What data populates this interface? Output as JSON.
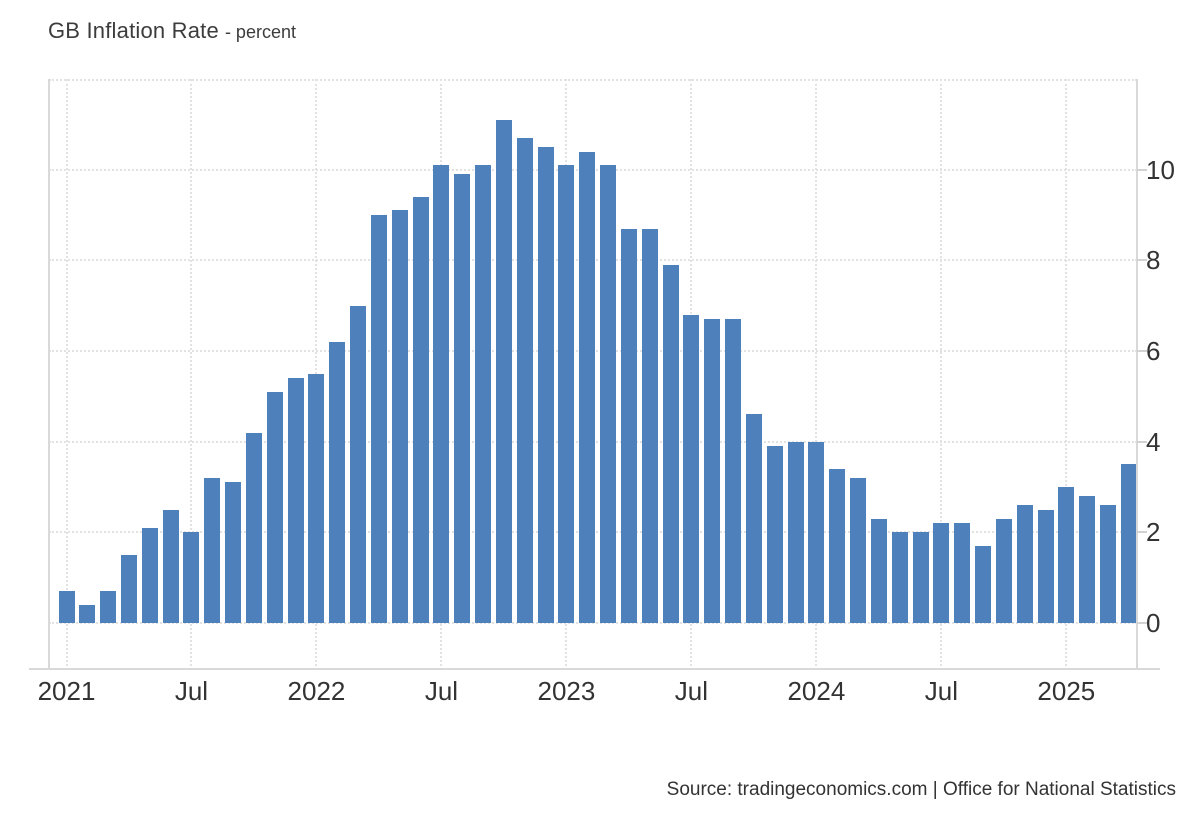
{
  "header": {
    "title": "GB Inflation Rate",
    "subtitle": "- percent"
  },
  "footer": {
    "source": "Source: tradingeconomics.com | Office for National Statistics"
  },
  "colors": {
    "bar": "#4e80bc",
    "grid": "#e2e2e2",
    "axis": "#d9d9d9",
    "text": "#333333"
  },
  "chart_data": {
    "type": "bar",
    "title": "GB Inflation Rate",
    "subtitle": "percent",
    "ylabel": "percent",
    "x": [
      "2021-01",
      "2021-02",
      "2021-03",
      "2021-04",
      "2021-05",
      "2021-06",
      "2021-07",
      "2021-08",
      "2021-09",
      "2021-10",
      "2021-11",
      "2021-12",
      "2022-01",
      "2022-02",
      "2022-03",
      "2022-04",
      "2022-05",
      "2022-06",
      "2022-07",
      "2022-08",
      "2022-09",
      "2022-10",
      "2022-11",
      "2022-12",
      "2023-01",
      "2023-02",
      "2023-03",
      "2023-04",
      "2023-05",
      "2023-06",
      "2023-07",
      "2023-08",
      "2023-09",
      "2023-10",
      "2023-11",
      "2023-12",
      "2024-01",
      "2024-02",
      "2024-03",
      "2024-04",
      "2024-05",
      "2024-06",
      "2024-07",
      "2024-08",
      "2024-09",
      "2024-10",
      "2024-11",
      "2024-12",
      "2025-01",
      "2025-02",
      "2025-03",
      "2025-04"
    ],
    "values": [
      0.7,
      0.4,
      0.7,
      1.5,
      2.1,
      2.5,
      2.0,
      3.2,
      3.1,
      4.2,
      5.1,
      5.4,
      5.5,
      6.2,
      7.0,
      9.0,
      9.1,
      9.4,
      10.1,
      9.9,
      10.1,
      11.1,
      10.7,
      10.5,
      10.1,
      10.4,
      10.1,
      8.7,
      8.7,
      7.9,
      6.8,
      6.7,
      6.7,
      4.6,
      3.9,
      4.0,
      4.0,
      3.4,
      3.2,
      2.3,
      2.0,
      2.0,
      2.2,
      2.2,
      1.7,
      2.3,
      2.6,
      2.5,
      3.0,
      2.8,
      2.6,
      3.5
    ],
    "x_tick_labels": [
      "2021",
      "Jul",
      "2022",
      "Jul",
      "2023",
      "Jul",
      "2024",
      "Jul",
      "2025"
    ],
    "x_tick_month_index": [
      0,
      6,
      12,
      18,
      24,
      30,
      36,
      42,
      48
    ],
    "y_ticks": [
      0,
      2,
      4,
      6,
      8,
      10
    ],
    "y_gridlines": [
      0,
      2,
      4,
      6,
      8,
      10,
      12
    ],
    "ylim": [
      -1.04,
      12
    ],
    "grid": "dotted",
    "legend": false
  }
}
